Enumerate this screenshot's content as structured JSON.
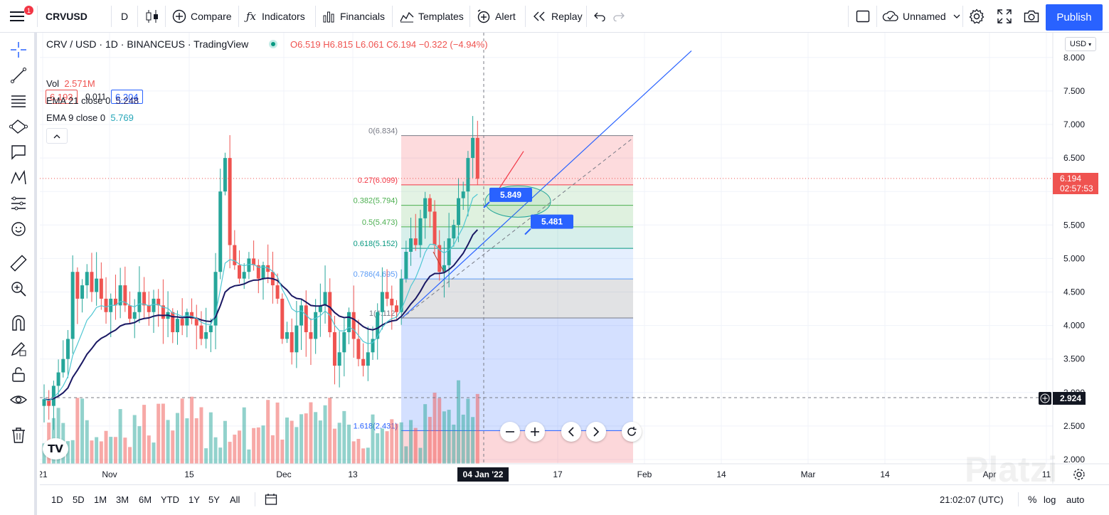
{
  "toolbar": {
    "symbol": "CRVUSD",
    "interval": "D",
    "compare": "Compare",
    "indicators": "Indicators",
    "financials": "Financials",
    "templates": "Templates",
    "alert": "Alert",
    "replay": "Replay",
    "layout_name": "Unnamed",
    "publish": "Publish",
    "notification_count": "1"
  },
  "legend": {
    "title": "CRV / USD · 1D · BINANCEUS · TradingView",
    "ohlc": "O6.519  H6.815  L6.061  C6.194  −0.322 (−4.94%)",
    "bid": "6.193",
    "spread": "0.011",
    "ask": "6.204",
    "vol_label": "Vol",
    "vol_value": "2.571M",
    "ema21_label": "EMA 21 close 0",
    "ema21_value": "5.248",
    "ema9_label": "EMA 9 close 0",
    "ema9_value": "5.769"
  },
  "currency": "USD",
  "price_axis": [
    "8.000",
    "7.500",
    "7.000",
    "6.500",
    "6.000",
    "5.500",
    "5.000",
    "4.500",
    "4.000",
    "3.500",
    "3.000",
    "2.500",
    "2.000"
  ],
  "last_price": {
    "value": "6.194",
    "countdown": "02:57:53"
  },
  "crosshair_price": "2.924",
  "time_axis": [
    "21",
    "Nov",
    "15",
    "Dec",
    "13",
    "17",
    "Feb",
    "14",
    "Mar",
    "14",
    "Apr",
    "11"
  ],
  "crosshair_date": "04 Jan '22",
  "fib_levels": [
    {
      "label": "0(6.834)",
      "price": 6.834,
      "color": "#787b86"
    },
    {
      "label": "0.27(6.099)",
      "price": 6.099,
      "color": "#f23645"
    },
    {
      "label": "0.382(5.794)",
      "price": 5.794,
      "color": "#4caf50"
    },
    {
      "label": "0.5(5.473)",
      "price": 5.473,
      "color": "#4caf50"
    },
    {
      "label": "0.618(5.152)",
      "price": 5.152,
      "color": "#089981"
    },
    {
      "label": "0.786(4.695)",
      "price": 4.695,
      "color": "#5b9cf6"
    },
    {
      "label": "1(4.112)",
      "price": 4.112,
      "color": "#787b86"
    },
    {
      "label": "1.618(2.431)",
      "price": 2.431,
      "color": "#2962ff"
    }
  ],
  "callouts": [
    "5.849",
    "5.481"
  ],
  "ranges": [
    "1D",
    "5D",
    "1M",
    "3M",
    "6M",
    "YTD",
    "1Y",
    "5Y",
    "All"
  ],
  "clock": "21:02:07 (UTC)",
  "scale_opts": [
    "%",
    "log",
    "auto"
  ],
  "watermark": "Platzi",
  "colors": {
    "up": "#26a69a",
    "down": "#ef5350",
    "ema21": "#1a1863",
    "ema9": "#4fc7d3",
    "accent": "#2962ff"
  }
}
